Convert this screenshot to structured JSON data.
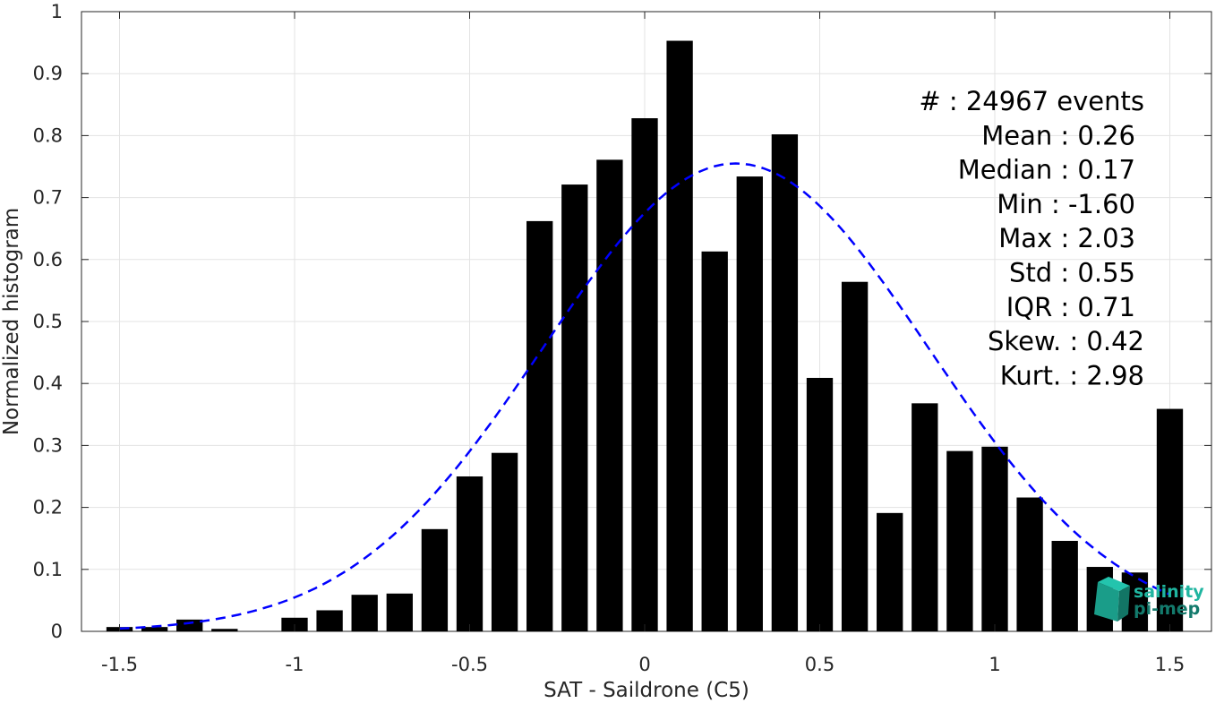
{
  "chart_data": {
    "type": "bar",
    "xlabel": "SAT - Saildrone (C5)",
    "ylabel": "Normalized histogram",
    "xlim": [
      -1.6,
      1.6
    ],
    "ylim": [
      0,
      1
    ],
    "grid": true,
    "xticks": [
      -1.5,
      -1,
      -0.5,
      0,
      0.5,
      1,
      1.5
    ],
    "xtick_labels": [
      "-1.5",
      "-1",
      "-0.5",
      "0",
      "0.5",
      "1",
      "1.5"
    ],
    "yticks": [
      0,
      0.1,
      0.2,
      0.3,
      0.4,
      0.5,
      0.6,
      0.7,
      0.8,
      0.9,
      1
    ],
    "ytick_labels": [
      "0",
      "0.1",
      "0.2",
      "0.3",
      "0.4",
      "0.5",
      "0.6",
      "0.7",
      "0.8",
      "0.9",
      "1"
    ],
    "bar_color": "#000000",
    "fit_color": "#0000ff",
    "x": [
      -1.5,
      -1.4,
      -1.3,
      -1.2,
      -1.1,
      -1.0,
      -0.9,
      -0.8,
      -0.7,
      -0.6,
      -0.5,
      -0.4,
      -0.3,
      -0.2,
      -0.1,
      0.0,
      0.1,
      0.2,
      0.3,
      0.4,
      0.5,
      0.6,
      0.7,
      0.8,
      0.9,
      1.0,
      1.1,
      1.2,
      1.3,
      1.4,
      1.5
    ],
    "values": [
      0.007,
      0.007,
      0.019,
      0.004,
      0.0,
      0.022,
      0.034,
      0.059,
      0.061,
      0.165,
      0.25,
      0.288,
      0.662,
      0.721,
      0.761,
      0.828,
      0.953,
      0.613,
      0.734,
      0.802,
      0.409,
      0.564,
      0.191,
      0.368,
      0.291,
      0.298,
      0.216,
      0.146,
      0.104,
      0.095,
      0.359
    ],
    "fit": {
      "type": "gaussian-dashed",
      "mean": 0.26,
      "std": 0.55,
      "peak": 0.755,
      "x_range": [
        -1.5,
        1.5
      ]
    },
    "stats": [
      {
        "label": "#  : 24967 events"
      },
      {
        "label": "Mean : 0.26"
      },
      {
        "label": "Median : 0.17"
      },
      {
        "label": "Min : -1.60"
      },
      {
        "label": "Max : 2.03"
      },
      {
        "label": "Std : 0.55"
      },
      {
        "label": "IQR : 0.71"
      },
      {
        "label": "Skew. : 0.42"
      },
      {
        "label": "Kurt. : 2.98"
      }
    ]
  },
  "logo": {
    "line1": "salinity",
    "line2": "pi-mep",
    "color1": "#1fb5a0",
    "color2": "#137a6c"
  }
}
